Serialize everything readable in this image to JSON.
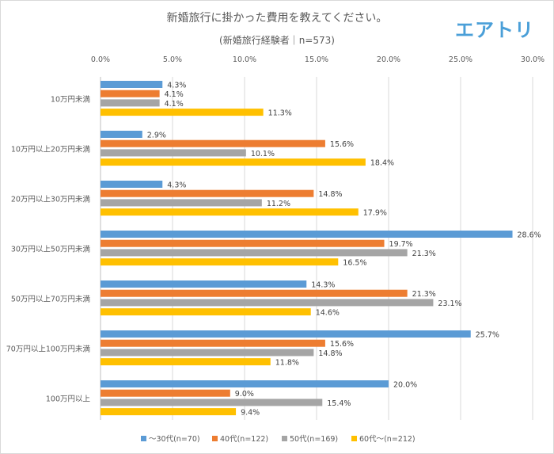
{
  "chart_data": {
    "type": "bar",
    "orientation": "horizontal",
    "title": "新婚旅行に掛かった費用を教えてください。",
    "subtitle": "(新婚旅行経験者｜n=573)",
    "logo": "エアトリ",
    "categories": [
      "10万円未満",
      "10万円以上20万円未満",
      "20万円以上30万円未満",
      "30万円以上50万円未満",
      "50万円以上70万円未満",
      "70万円以上100万円未満",
      "100万円以上"
    ],
    "series": [
      {
        "name": "～30代(n=70)",
        "color": "#5b9bd5",
        "values": [
          4.3,
          2.9,
          4.3,
          28.6,
          14.3,
          25.7,
          20.0
        ]
      },
      {
        "name": "40代(n=122)",
        "color": "#ed7d31",
        "values": [
          4.1,
          15.6,
          14.8,
          19.7,
          21.3,
          15.6,
          9.0
        ]
      },
      {
        "name": "50代(n=169)",
        "color": "#a5a5a5",
        "values": [
          4.1,
          10.1,
          11.2,
          21.3,
          23.1,
          14.8,
          15.4
        ]
      },
      {
        "name": "60代～(n=212)",
        "color": "#ffc000",
        "values": [
          11.3,
          18.4,
          17.9,
          16.5,
          14.6,
          11.8,
          9.4
        ]
      }
    ],
    "xlim": [
      0,
      30
    ],
    "xticks": [
      "0.0%",
      "5.0%",
      "10.0%",
      "15.0%",
      "20.0%",
      "25.0%",
      "30.0%"
    ],
    "grid": true,
    "legend": "bottom",
    "value_format": "percent"
  }
}
